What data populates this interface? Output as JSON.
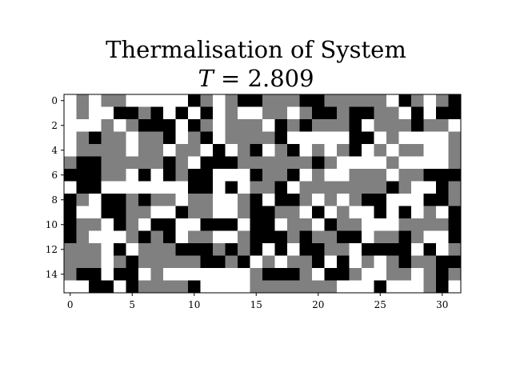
{
  "chart_data": {
    "type": "heatmap",
    "title": "Thermalisation of System",
    "subtitle": {
      "variable": "T",
      "equals": "=",
      "value": "2.809"
    },
    "xlabel": "",
    "ylabel": "",
    "xlim": [
      -0.5,
      31.5
    ],
    "ylim": [
      15.5,
      -0.5
    ],
    "x_ticks": [
      0,
      5,
      10,
      15,
      20,
      25,
      30
    ],
    "y_ticks": [
      0,
      2,
      4,
      6,
      8,
      10,
      12,
      14
    ],
    "grid": false,
    "color_levels": {
      "1": "#ffffff",
      "0": "#808080",
      "-1": "#000000"
    },
    "rows": 16,
    "cols": 32,
    "values": [
      [
        1,
        0,
        1,
        0,
        0,
        1,
        1,
        1,
        1,
        1,
        -1,
        0,
        1,
        0,
        -1,
        -1,
        0,
        0,
        0,
        -1,
        -1,
        0,
        0,
        0,
        0,
        0,
        1,
        -1,
        0,
        1,
        0,
        -1
      ],
      [
        1,
        0,
        1,
        1,
        -1,
        -1,
        0,
        -1,
        1,
        -1,
        1,
        -1,
        1,
        0,
        1,
        1,
        0,
        0,
        1,
        0,
        -1,
        -1,
        0,
        -1,
        -1,
        0,
        0,
        1,
        -1,
        1,
        -1,
        -1
      ],
      [
        1,
        1,
        1,
        0,
        1,
        0,
        -1,
        -1,
        -1,
        1,
        -1,
        0,
        1,
        0,
        0,
        0,
        1,
        -1,
        0,
        -1,
        0,
        0,
        0,
        -1,
        1,
        0,
        0,
        0,
        -1,
        0,
        0,
        1
      ],
      [
        1,
        0,
        -1,
        0,
        0,
        1,
        0,
        0,
        -1,
        1,
        0,
        -1,
        1,
        0,
        0,
        0,
        0,
        -1,
        1,
        1,
        1,
        1,
        1,
        -1,
        -1,
        1,
        0,
        1,
        1,
        1,
        1,
        0
      ],
      [
        1,
        0,
        0,
        0,
        0,
        1,
        0,
        0,
        1,
        0,
        0,
        1,
        -1,
        1,
        0,
        -1,
        1,
        0,
        -1,
        1,
        0,
        1,
        0,
        -1,
        1,
        0,
        1,
        0,
        0,
        1,
        1,
        0
      ],
      [
        0,
        -1,
        -1,
        0,
        0,
        0,
        0,
        0,
        -1,
        0,
        1,
        -1,
        -1,
        -1,
        0,
        0,
        0,
        0,
        0,
        0,
        -1,
        0,
        1,
        1,
        1,
        1,
        0,
        1,
        1,
        1,
        1,
        0
      ],
      [
        -1,
        -1,
        -1,
        0,
        0,
        1,
        -1,
        1,
        -1,
        0,
        -1,
        -1,
        1,
        1,
        1,
        -1,
        0,
        0,
        -1,
        1,
        0,
        1,
        1,
        0,
        0,
        0,
        1,
        0,
        0,
        -1,
        -1,
        -1
      ],
      [
        1,
        -1,
        -1,
        1,
        1,
        1,
        1,
        1,
        1,
        1,
        -1,
        -1,
        1,
        -1,
        1,
        0,
        0,
        -1,
        1,
        0,
        0,
        0,
        0,
        0,
        0,
        0,
        -1,
        0,
        1,
        1,
        -1,
        0
      ],
      [
        -1,
        0,
        1,
        -1,
        -1,
        0,
        -1,
        0,
        0,
        1,
        0,
        0,
        1,
        1,
        0,
        -1,
        1,
        -1,
        -1,
        0,
        1,
        0,
        1,
        0,
        -1,
        -1,
        1,
        1,
        1,
        -1,
        -1,
        0
      ],
      [
        -1,
        1,
        1,
        -1,
        -1,
        0,
        0,
        1,
        1,
        -1,
        0,
        0,
        1,
        1,
        0,
        -1,
        -1,
        0,
        0,
        1,
        -1,
        1,
        0,
        1,
        1,
        -1,
        1,
        -1,
        1,
        0,
        1,
        -1
      ],
      [
        -1,
        0,
        0,
        1,
        -1,
        0,
        1,
        -1,
        -1,
        1,
        1,
        -1,
        -1,
        -1,
        1,
        -1,
        -1,
        1,
        0,
        0,
        1,
        -1,
        0,
        0,
        1,
        1,
        1,
        0,
        0,
        0,
        0,
        -1
      ],
      [
        -1,
        0,
        1,
        1,
        1,
        0,
        -1,
        0,
        -1,
        1,
        0,
        0,
        1,
        1,
        0,
        -1,
        -1,
        -1,
        0,
        -1,
        0,
        0,
        -1,
        -1,
        1,
        0,
        0,
        -1,
        0,
        1,
        1,
        -1
      ],
      [
        0,
        0,
        0,
        1,
        -1,
        1,
        0,
        0,
        0,
        -1,
        -1,
        -1,
        0,
        -1,
        0,
        -1,
        1,
        -1,
        1,
        -1,
        -1,
        0,
        0,
        1,
        -1,
        -1,
        -1,
        -1,
        1,
        -1,
        1,
        0
      ],
      [
        0,
        0,
        0,
        1,
        0,
        -1,
        0,
        0,
        0,
        0,
        0,
        -1,
        -1,
        0,
        -1,
        1,
        0,
        1,
        0,
        0,
        -1,
        1,
        -1,
        1,
        0,
        1,
        0,
        -1,
        0,
        0,
        -1,
        -1
      ],
      [
        0,
        -1,
        -1,
        1,
        -1,
        -1,
        1,
        0,
        1,
        1,
        1,
        1,
        1,
        1,
        1,
        0,
        -1,
        -1,
        -1,
        0,
        1,
        -1,
        -1,
        0,
        1,
        1,
        0,
        0,
        1,
        0,
        -1,
        0
      ],
      [
        1,
        1,
        -1,
        -1,
        1,
        -1,
        0,
        0,
        0,
        0,
        -1,
        1,
        1,
        1,
        1,
        0,
        0,
        0,
        0,
        0,
        0,
        0,
        1,
        1,
        1,
        -1,
        1,
        1,
        1,
        0,
        -1,
        1
      ]
    ]
  }
}
